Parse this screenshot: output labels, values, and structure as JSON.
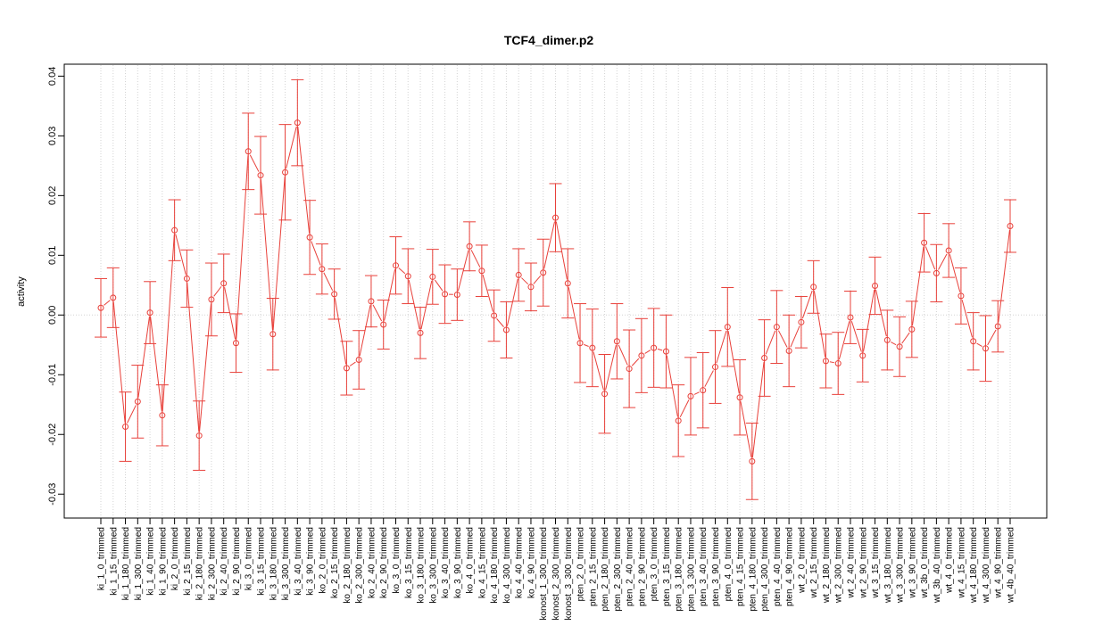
{
  "chart_data": {
    "type": "line",
    "title": "TCF4_dimer.p2",
    "xlabel": "",
    "ylabel": "activity",
    "ylim": [
      -0.034,
      0.042
    ],
    "yticks": [
      -0.03,
      -0.02,
      -0.01,
      0.0,
      0.01,
      0.02,
      0.03,
      0.04
    ],
    "ytick_labels": [
      "-0.03",
      "-0.02",
      "-0.01",
      "0.00",
      "0.01",
      "0.02",
      "0.03",
      "0.04"
    ],
    "grid": true,
    "series_color": "#e8403a",
    "grid_color": "#d3d3d3",
    "categories": [
      "ki_1_0_trimmed",
      "ki_1_15_trimmed",
      "ki_1_180_trimmed",
      "ki_1_300_trimmed",
      "ki_1_40_trimmed",
      "ki_1_90_trimmed",
      "ki_2_0_trimmed",
      "ki_2_15_trimmed",
      "ki_2_180_trimmed",
      "ki_2_300_trimmed",
      "ki_2_40_trimmed",
      "ki_2_90_trimmed",
      "ki_3_0_trimmed",
      "ki_3_15_trimmed",
      "ki_3_180_trimmed",
      "ki_3_300_trimmed",
      "ki_3_40_trimmed",
      "ki_3_90_trimmed",
      "ko_2_0_trimmed",
      "ko_2_15_trimmed",
      "ko_2_180_trimmed",
      "ko_2_300_trimmed",
      "ko_2_40_trimmed",
      "ko_2_90_trimmed",
      "ko_3_0_trimmed",
      "ko_3_15_trimmed",
      "ko_3_180_trimmed",
      "ko_3_300_trimmed",
      "ko_3_40_trimmed",
      "ko_3_90_trimmed",
      "ko_4_0_trimmed",
      "ko_4_15_trimmed",
      "ko_4_180_trimmed",
      "ko_4_300_trimmed",
      "ko_4_40_trimmed",
      "ko_4_90_trimmed",
      "konost_1_300_trimmed",
      "konost_2_300_trimmed",
      "konost_3_300_trimmed",
      "pten_2_0_trimmed",
      "pten_2_15_trimmed",
      "pten_2_180_trimmed",
      "pten_2_300_trimmed",
      "pten_2_40_trimmed",
      "pten_2_90_trimmed",
      "pten_3_0_trimmed",
      "pten_3_15_trimmed",
      "pten_3_180_trimmed",
      "pten_3_300_trimmed",
      "pten_3_40_trimmed",
      "pten_3_90_trimmed",
      "pten_4_0_trimmed",
      "pten_4_15_trimmed",
      "pten_4_180_trimmed",
      "pten_4_300_trimmed",
      "pten_4_40_trimmed",
      "pten_4_90_trimmed",
      "wt_2_0_trimmed",
      "wt_2_15_trimmed",
      "wt_2_180_trimmed",
      "wt_2_300_trimmed",
      "wt_2_40_trimmed",
      "wt_2_90_trimmed",
      "wt_3_15_trimmed",
      "wt_3_180_trimmed",
      "wt_3_300_trimmed",
      "wt_3_90_trimmed",
      "wt_3b_0_trimmed",
      "wt_3b_40_trimmed",
      "wt_4_0_trimmed",
      "wt_4_15_trimmed",
      "wt_4_180_trimmed",
      "wt_4_300_trimmed",
      "wt_4_90_trimmed",
      "wt_4b_40_trimmed"
    ],
    "values": [
      0.0012,
      0.0029,
      -0.0187,
      -0.0145,
      0.0004,
      -0.0168,
      0.0142,
      0.0061,
      -0.0202,
      0.0026,
      0.0053,
      -0.0047,
      0.0274,
      0.0234,
      -0.0032,
      0.0239,
      0.0322,
      0.013,
      0.0077,
      0.0035,
      -0.0089,
      -0.0075,
      0.0023,
      -0.0016,
      0.0083,
      0.0065,
      -0.003,
      0.0064,
      0.0035,
      0.0034,
      0.0115,
      0.0074,
      -0.0001,
      -0.0025,
      0.0067,
      0.0047,
      0.0071,
      0.0163,
      0.0053,
      -0.0047,
      -0.0055,
      -0.0132,
      -0.0044,
      -0.009,
      -0.0068,
      -0.0055,
      -0.0061,
      -0.0177,
      -0.0136,
      -0.0126,
      -0.0087,
      -0.002,
      -0.0138,
      -0.0245,
      -0.0072,
      -0.002,
      -0.006,
      -0.0012,
      0.0047,
      -0.0077,
      -0.0081,
      -0.0004,
      -0.0068,
      0.0049,
      -0.0042,
      -0.0053,
      -0.0024,
      0.0121,
      0.007,
      0.0108,
      0.0032,
      -0.0044,
      -0.0056,
      -0.0019,
      0.0149
    ],
    "errors": [
      0.0049,
      0.005,
      0.0058,
      0.0061,
      0.0052,
      0.0051,
      0.0051,
      0.0048,
      0.0058,
      0.0061,
      0.0049,
      0.0049,
      0.0064,
      0.0065,
      0.006,
      0.008,
      0.0072,
      0.0062,
      0.0042,
      0.0042,
      0.0045,
      0.0049,
      0.0043,
      0.0041,
      0.0048,
      0.0046,
      0.0043,
      0.0046,
      0.0049,
      0.0043,
      0.0041,
      0.0043,
      0.0043,
      0.0047,
      0.0044,
      0.004,
      0.0056,
      0.0057,
      0.0058,
      0.0066,
      0.0065,
      0.0066,
      0.0063,
      0.0065,
      0.0062,
      0.0066,
      0.0061,
      0.006,
      0.0065,
      0.0063,
      0.0061,
      0.0066,
      0.0063,
      0.0064,
      0.0064,
      0.0061,
      0.006,
      0.0043,
      0.0044,
      0.0045,
      0.0052,
      0.0044,
      0.0044,
      0.0048,
      0.005,
      0.005,
      0.0047,
      0.0049,
      0.0048,
      0.0045,
      0.0047,
      0.0048,
      0.0055,
      0.0043,
      0.0044
    ]
  }
}
